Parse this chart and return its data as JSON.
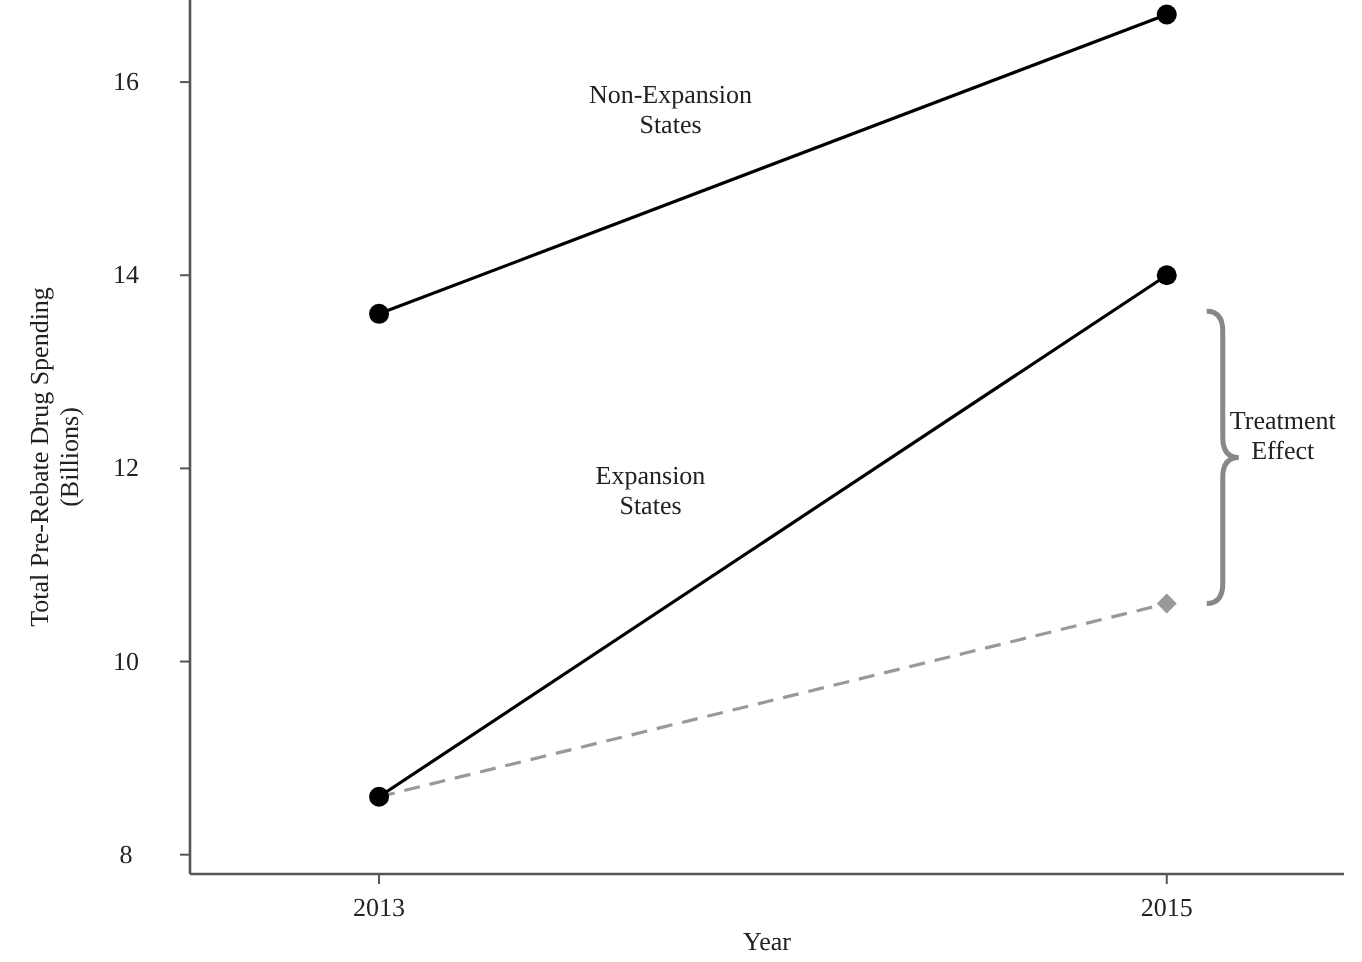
{
  "chart_data": {
    "type": "line",
    "xlabel": "Year",
    "ylabel": "Total Pre-Rebate Drug Spending\n(Billions)",
    "x": [
      2013,
      2015
    ],
    "xlim": [
      2012.52,
      2015.45
    ],
    "xticks": [
      2013,
      2015
    ],
    "ylim": [
      7.8,
      16.85
    ],
    "yticks": [
      8,
      10,
      12,
      14,
      16
    ],
    "grid": false,
    "series": [
      {
        "name": "Non-Expansion\nStates",
        "color": "#000000",
        "values": [
          13.6,
          16.7
        ],
        "marker": "circle",
        "line_style": "solid"
      },
      {
        "name": "Expansion\nStates",
        "color": "#000000",
        "values": [
          8.6,
          14.0
        ],
        "marker": "circle",
        "line_style": "solid"
      },
      {
        "color": "#999999",
        "values": [
          8.6,
          10.6
        ],
        "marker": "diamond",
        "line_style": "dashed"
      }
    ],
    "annotations": [
      "Treatment\nEffect"
    ]
  }
}
